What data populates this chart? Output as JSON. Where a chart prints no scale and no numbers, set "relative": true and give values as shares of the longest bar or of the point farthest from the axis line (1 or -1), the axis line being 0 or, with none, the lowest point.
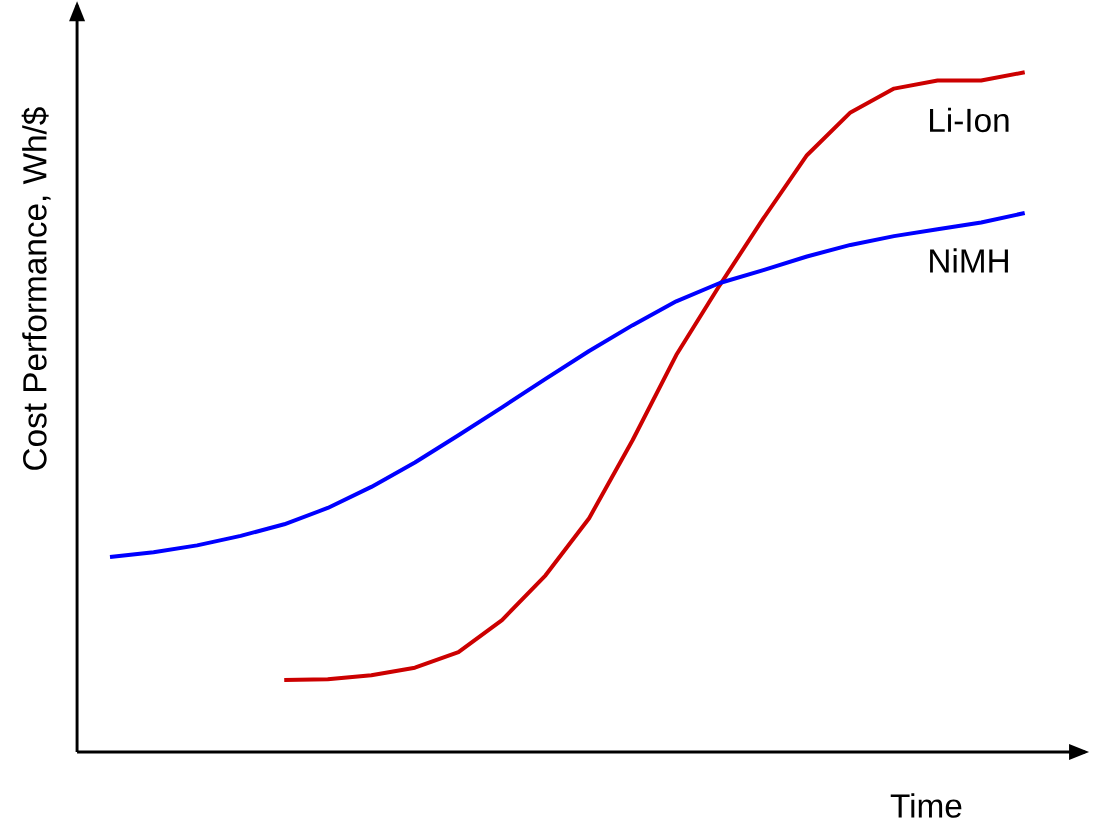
{
  "chart_data": {
    "type": "line",
    "relative": true,
    "xlabel": "Time",
    "ylabel": "Cost Performance, Wh/$",
    "line_style": "solid",
    "marker": "none",
    "categories": [
      null,
      null,
      null,
      null,
      null,
      null,
      null,
      null,
      null,
      null,
      null,
      null,
      null,
      null,
      null,
      null,
      null,
      null,
      null,
      null,
      null,
      null
    ],
    "series": [
      {
        "name": "Li-Ion",
        "color": "#cc0000",
        "values": [
          null,
          null,
          null,
          null,
          0.106,
          0.107,
          0.113,
          0.124,
          0.147,
          0.194,
          0.26,
          0.344,
          0.459,
          0.584,
          0.687,
          0.785,
          0.878,
          0.941,
          0.976,
          0.988,
          0.988,
          1
        ]
      },
      {
        "name": "NiMH",
        "color": "#0000ff",
        "values": [
          0.287,
          0.294,
          0.304,
          0.318,
          0.335,
          0.359,
          0.39,
          0.426,
          0.466,
          0.507,
          0.549,
          0.59,
          0.628,
          0.663,
          0.69,
          0.709,
          0.729,
          0.746,
          0.759,
          0.769,
          0.779,
          0.793
        ]
      }
    ]
  }
}
